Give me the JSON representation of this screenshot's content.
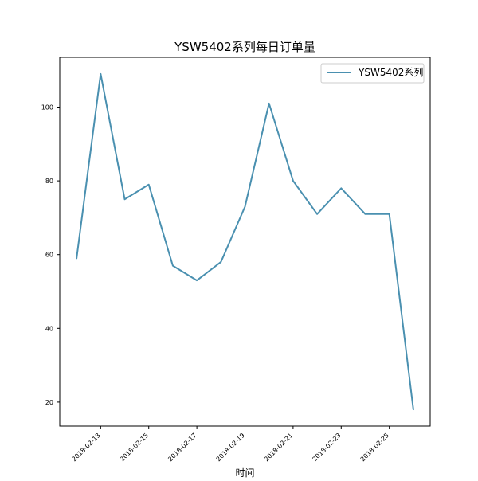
{
  "chart_data": {
    "type": "line",
    "title": "YSW5402系列每日订单量",
    "xlabel": "时间",
    "ylabel": "",
    "x": [
      "2018-02-12",
      "2018-02-13",
      "2018-02-14",
      "2018-02-15",
      "2018-02-16",
      "2018-02-17",
      "2018-02-18",
      "2018-02-19",
      "2018-02-20",
      "2018-02-21",
      "2018-02-22",
      "2018-02-23",
      "2018-02-24",
      "2018-02-25",
      "2018-02-26"
    ],
    "x_ticks": [
      "2018-02-13",
      "2018-02-15",
      "2018-02-17",
      "2018-02-19",
      "2018-02-21",
      "2018-02-23",
      "2018-02-25"
    ],
    "y_ticks": [
      20,
      40,
      60,
      80,
      100
    ],
    "ylim": [
      13.5,
      113.5
    ],
    "series": [
      {
        "name": "YSW5402系列",
        "color": "#4a90b0",
        "values": [
          59,
          109,
          75,
          79,
          57,
          53,
          58,
          73,
          101,
          80,
          71,
          78,
          71,
          71,
          18
        ]
      }
    ],
    "legend": "top-right",
    "grid": false
  }
}
